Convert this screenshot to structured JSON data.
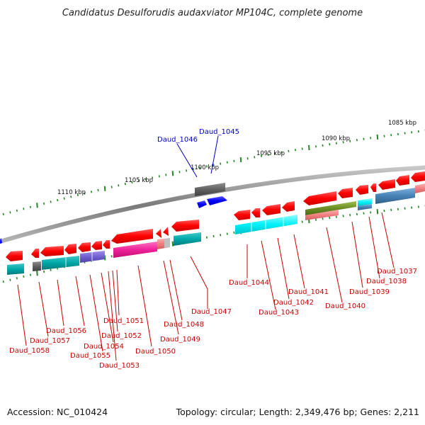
{
  "title": "Candidatus Desulforudis audaxviator MP104C, complete genome",
  "footer": {
    "accession": "Accession: NC_010424",
    "topology": "Topology: circular; Length: 2,349,476 bp; Genes: 2,211"
  },
  "ruler_labels": [
    "1085 kbp",
    "1090 kbp",
    "1095 kbp",
    "1100 kbp",
    "1105 kbp",
    "1110 kbp"
  ],
  "colors": {
    "backbone": "#8a8a8a",
    "tick": "#228822",
    "label_red": "#cc0000",
    "label_blue": "#0000cc"
  },
  "genes": [
    {
      "name": "Daud_1037",
      "color": "#cc0000"
    },
    {
      "name": "Daud_1038",
      "color": "#cc0000"
    },
    {
      "name": "Daud_1039",
      "color": "#cc0000"
    },
    {
      "name": "Daud_1040",
      "color": "#cc0000"
    },
    {
      "name": "Daud_1041",
      "color": "#cc0000"
    },
    {
      "name": "Daud_1042",
      "color": "#cc0000"
    },
    {
      "name": "Daud_1043",
      "color": "#cc0000"
    },
    {
      "name": "Daud_1044",
      "color": "#cc0000"
    },
    {
      "name": "Daud_1045",
      "color": "#0000cc"
    },
    {
      "name": "Daud_1046",
      "color": "#0000cc"
    },
    {
      "name": "Daud_1047",
      "color": "#cc0000"
    },
    {
      "name": "Daud_1048",
      "color": "#cc0000"
    },
    {
      "name": "Daud_1049",
      "color": "#cc0000"
    },
    {
      "name": "Daud_1050",
      "color": "#cc0000"
    },
    {
      "name": "Daud_1051",
      "color": "#cc0000"
    },
    {
      "name": "Daud_1052",
      "color": "#cc0000"
    },
    {
      "name": "Daud_1053",
      "color": "#cc0000"
    },
    {
      "name": "Daud_1054",
      "color": "#cc0000"
    },
    {
      "name": "Daud_1055",
      "color": "#cc0000"
    },
    {
      "name": "Daud_1056",
      "color": "#cc0000"
    },
    {
      "name": "Daud_1057",
      "color": "#cc0000"
    },
    {
      "name": "Daud_1058",
      "color": "#cc0000"
    }
  ]
}
